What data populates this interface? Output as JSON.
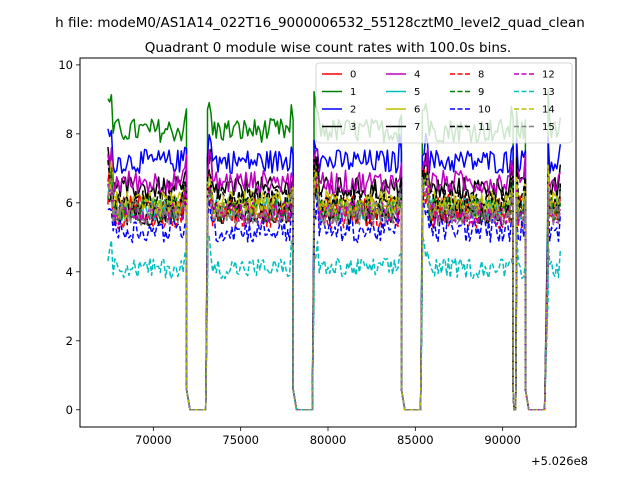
{
  "chart_data": {
    "type": "line",
    "suptitle": "h file: modeM0/AS1A14_022T16_9000006532_55128cztM0_level2_quad_clean",
    "title": "Quadrant 0 module wise count rates with 100.0s bins.",
    "xlabel": "",
    "ylabel": "",
    "x_offset_label": "+5.026e8",
    "xlim": [
      65800,
      94200
    ],
    "ylim": [
      -0.5,
      10.2
    ],
    "xticks": [
      70000,
      75000,
      80000,
      85000,
      90000
    ],
    "xtick_labels": [
      "70000",
      "75000",
      "80000",
      "85000",
      "90000"
    ],
    "yticks": [
      0,
      2,
      4,
      6,
      8,
      10
    ],
    "ytick_labels": [
      "0",
      "2",
      "4",
      "6",
      "8",
      "10"
    ],
    "legend_position": "top-right",
    "legend_columns": 4,
    "segments": [
      [
        67400,
        71900
      ],
      [
        73100,
        78000
      ],
      [
        79200,
        84200
      ],
      [
        85400,
        90600
      ],
      [
        90800,
        91300
      ],
      [
        92600,
        93300
      ]
    ],
    "gap_bounds": [
      [
        71900,
        72100,
        73000,
        73100
      ],
      [
        78000,
        78200,
        79100,
        79200
      ],
      [
        84200,
        84400,
        85300,
        85400
      ],
      [
        90600,
        90650,
        90750,
        90800
      ],
      [
        91300,
        91500,
        92400,
        92600
      ]
    ],
    "series": [
      {
        "name": "0",
        "color": "#ff0000",
        "dash": "solid",
        "level": 5.9,
        "noise": 0.35
      },
      {
        "name": "1",
        "color": "#008000",
        "dash": "solid",
        "level": 8.1,
        "noise": 0.35
      },
      {
        "name": "2",
        "color": "#0000ff",
        "dash": "solid",
        "level": 7.2,
        "noise": 0.35
      },
      {
        "name": "3",
        "color": "#000000",
        "dash": "solid",
        "level": 6.4,
        "noise": 0.35
      },
      {
        "name": "4",
        "color": "#bf00bf",
        "dash": "solid",
        "level": 6.6,
        "noise": 0.35
      },
      {
        "name": "5",
        "color": "#00bfbf",
        "dash": "solid",
        "level": 5.8,
        "noise": 0.35
      },
      {
        "name": "6",
        "color": "#bfbf00",
        "dash": "solid",
        "level": 6.0,
        "noise": 0.35
      },
      {
        "name": "7",
        "color": "#000000",
        "dash": "solid",
        "level": 5.7,
        "noise": 0.35
      },
      {
        "name": "8",
        "color": "#ff0000",
        "dash": "dashed",
        "level": 5.6,
        "noise": 0.35
      },
      {
        "name": "9",
        "color": "#008000",
        "dash": "dashed",
        "level": 5.8,
        "noise": 0.35
      },
      {
        "name": "10",
        "color": "#0000ff",
        "dash": "dashed",
        "level": 5.2,
        "noise": 0.35
      },
      {
        "name": "11",
        "color": "#000000",
        "dash": "dashed",
        "level": 6.1,
        "noise": 0.35
      },
      {
        "name": "12",
        "color": "#bf00bf",
        "dash": "dashed",
        "level": 5.7,
        "noise": 0.35
      },
      {
        "name": "13",
        "color": "#00bfbf",
        "dash": "dashed",
        "level": 4.1,
        "noise": 0.3
      },
      {
        "name": "14",
        "color": "#bfbf00",
        "dash": "dashed",
        "level": 5.9,
        "noise": 0.35
      },
      {
        "name": "15",
        "color": "#808080",
        "dash": "dashed",
        "level": 5.7,
        "noise": 0.35
      }
    ]
  }
}
